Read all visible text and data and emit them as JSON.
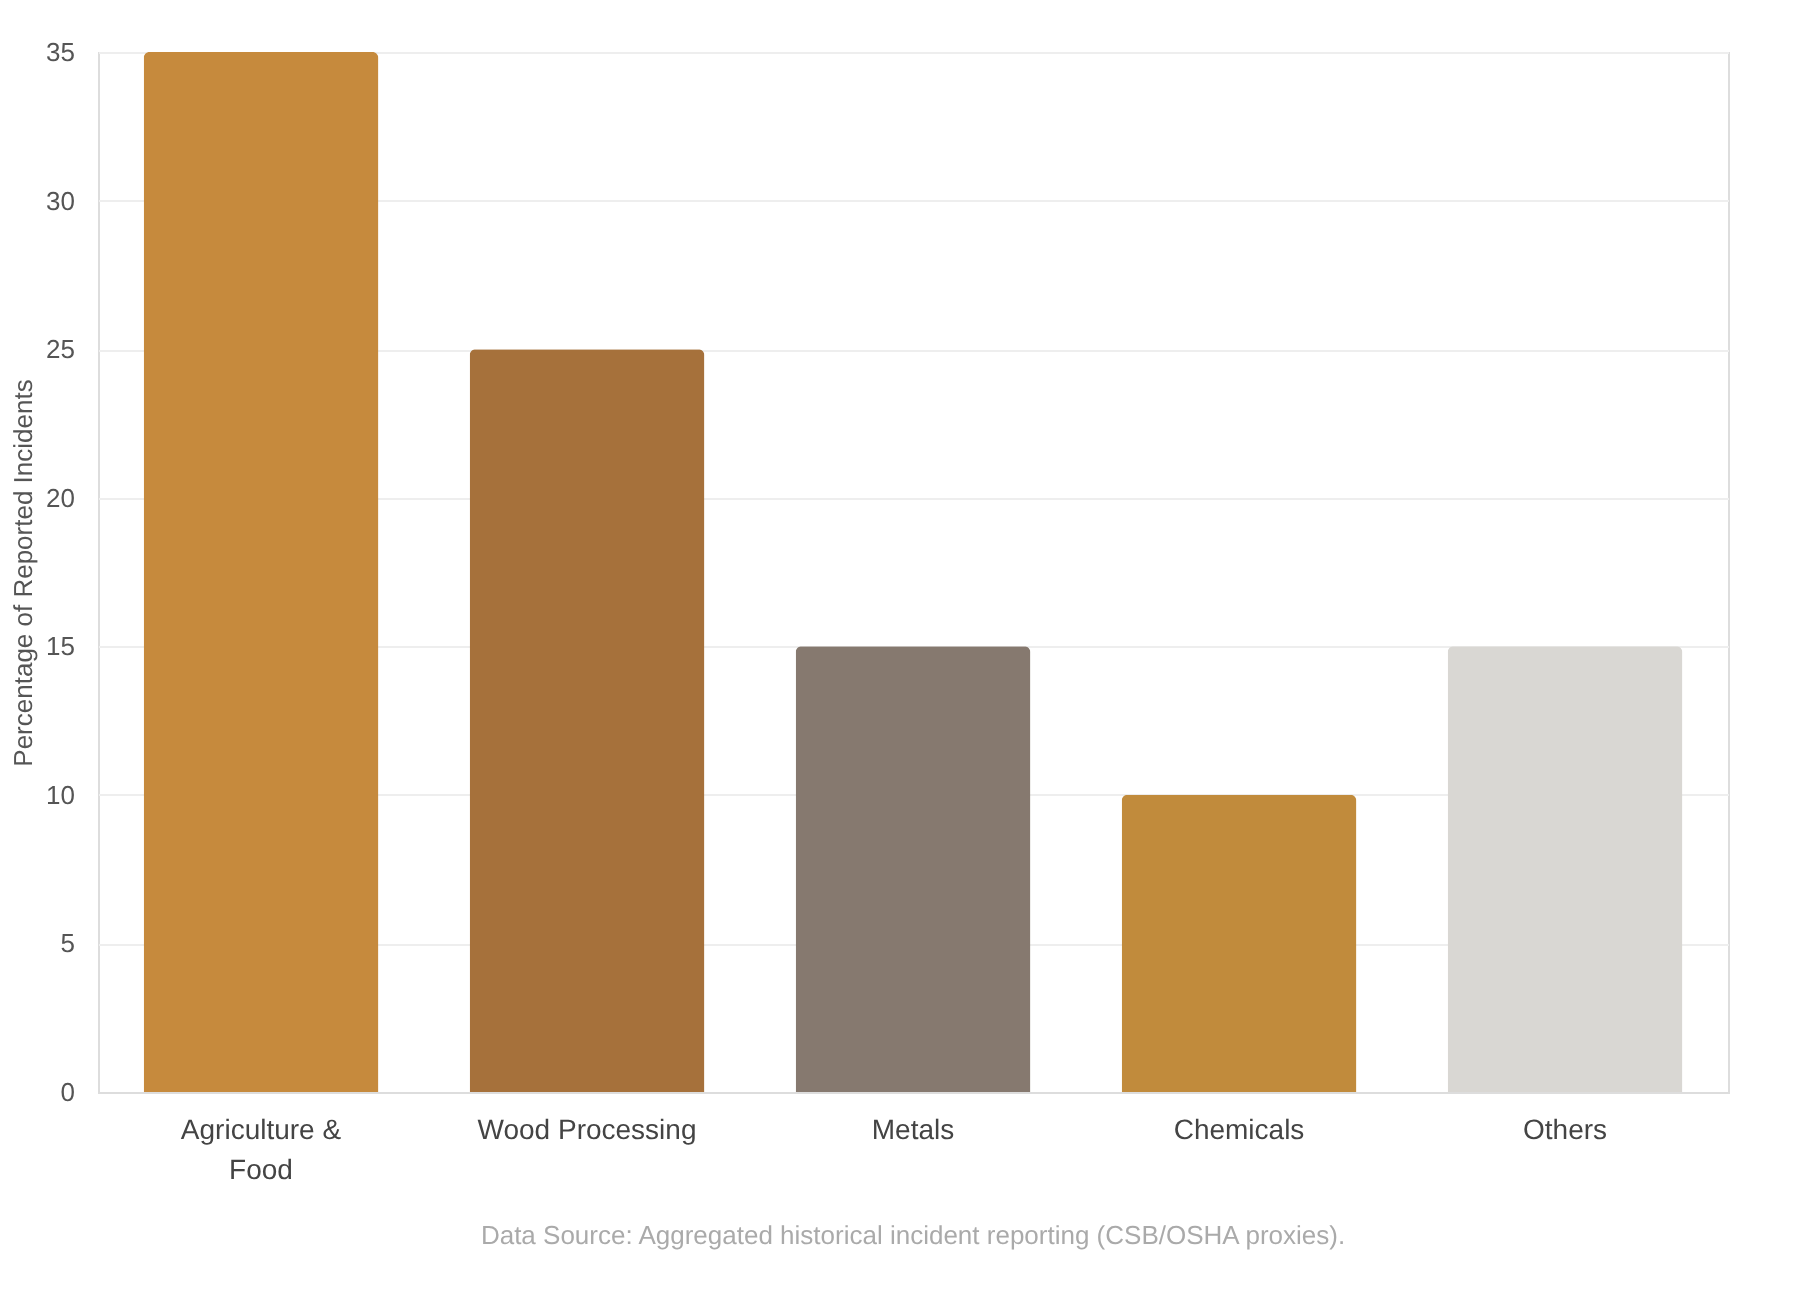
{
  "chart_data": {
    "type": "bar",
    "ylabel": "Percentage of Reported Incidents",
    "categories": [
      "Agriculture & Food",
      "Wood Processing",
      "Metals",
      "Chemicals",
      "Others"
    ],
    "values": [
      35,
      25,
      15,
      10,
      15
    ],
    "colors": [
      "#c68a3d",
      "#a6713b",
      "#86796f",
      "#c18b3c",
      "#d9d7d3"
    ],
    "ylim": [
      0,
      35
    ],
    "yticks": [
      0,
      5,
      10,
      15,
      20,
      25,
      30,
      35
    ],
    "grid": "y",
    "annotations": [
      "Data Source: Aggregated historical incident reporting (CSB/OSHA proxies)."
    ]
  }
}
